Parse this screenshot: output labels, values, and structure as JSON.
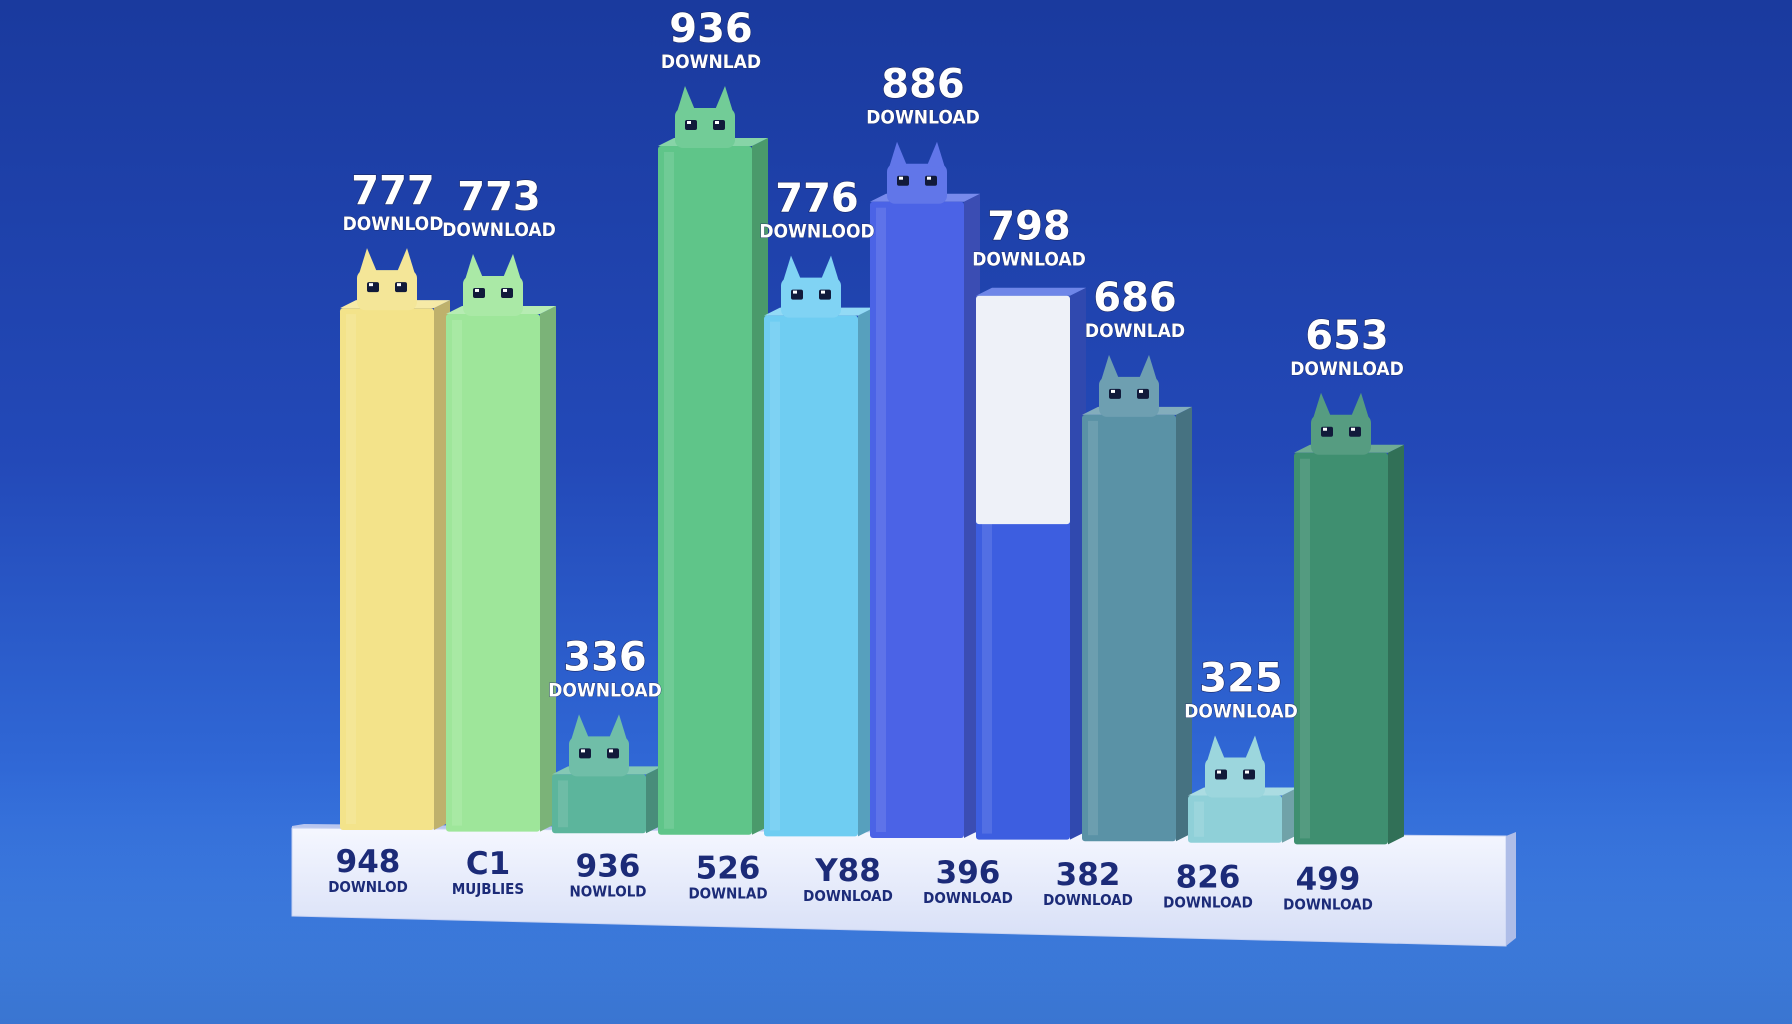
{
  "chart_data": {
    "type": "bar",
    "style": "3d-blocks-with-creature-mascots",
    "series": [
      {
        "values": [
          777,
          773,
          336,
          936,
          776,
          886,
          798,
          686,
          325,
          653
        ],
        "labels": [
          "DOWNLOD",
          "DOWNLOAD",
          "DOWNLOAD",
          "DOWNLAD",
          "DOWNLOOD",
          "DOWNLOAD",
          "DOWNLOAD",
          "DOWNLAD",
          "DOWNLOAD",
          "DOWNLOAD"
        ]
      }
    ],
    "base_labels": [
      {
        "value": "948",
        "caption": "DOWNLOD"
      },
      {
        "value": "C1",
        "caption": "MUJBLIES"
      },
      {
        "value": "936",
        "caption": "NOWLOLD"
      },
      {
        "value": "526",
        "caption": "DOWNLAD"
      },
      {
        "value": "Y88",
        "caption": "DOWNLOAD"
      },
      {
        "value": "396",
        "caption": "DOWNLOAD"
      },
      {
        "value": "382",
        "caption": "DOWNLOAD"
      },
      {
        "value": "826",
        "caption": "DOWNLOAD"
      },
      {
        "value": "499",
        "caption": "DOWNLOAD"
      }
    ],
    "bar_colors": [
      "#f3e38a",
      "#9ee69a",
      "#5cb59c",
      "#5fc589",
      "#6fcdf2",
      "#4b63e6",
      "#3d5ee0",
      "#5a92a6",
      "#8fd0d8",
      "#3f8f70"
    ],
    "creatures": [
      "cat",
      "spiky-lizard",
      "winged-critter",
      "eared-goblin",
      "bird",
      "square-face",
      "",
      "fox",
      "tentacle-beast",
      "robot-dog"
    ],
    "background": {
      "top": "#1a3a9e",
      "bottom": "#4d95ee"
    },
    "legend": "none",
    "grid": false
  }
}
